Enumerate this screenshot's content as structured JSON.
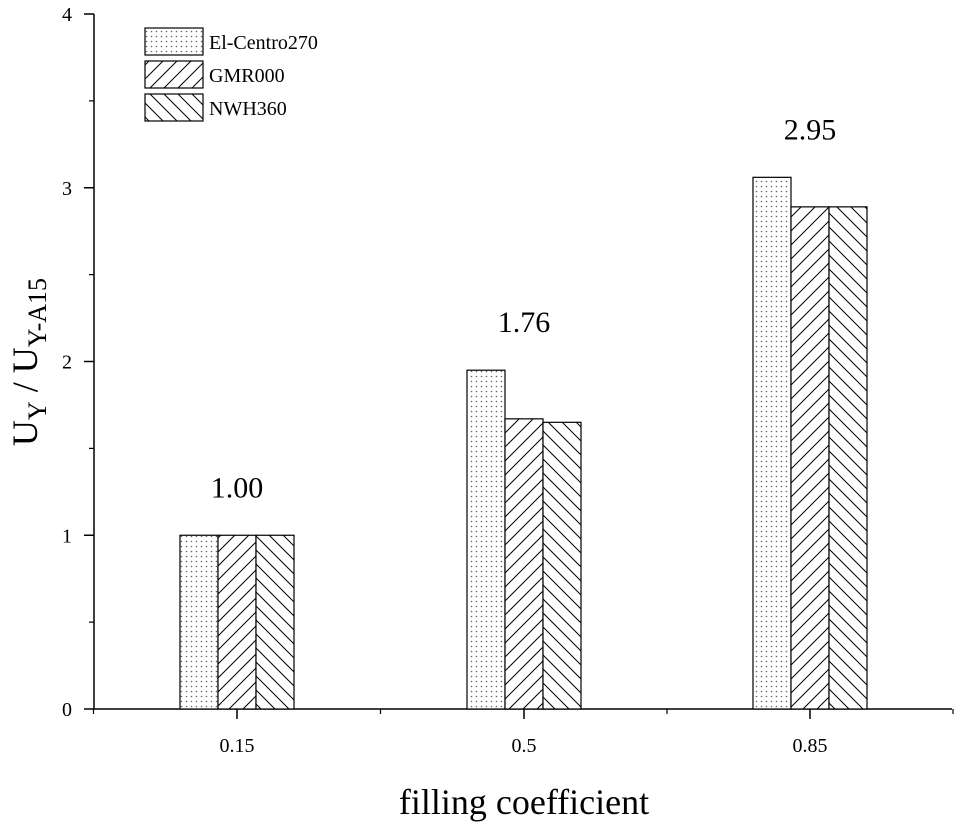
{
  "chart_data": {
    "type": "bar",
    "title": "",
    "xlabel": "filling coefficient",
    "ylabel": {
      "main": "U",
      "sub1": "Y",
      "sep": " / U",
      "sub2": "Y-A15"
    },
    "ylim": [
      0,
      4
    ],
    "yticks": [
      "0",
      "1",
      "2",
      "3",
      "4"
    ],
    "categories": [
      "0.15",
      "0.5",
      "0.85"
    ],
    "series": [
      {
        "name": "El-Centro270",
        "pattern": "dots",
        "values": [
          1.0,
          1.95,
          3.06
        ]
      },
      {
        "name": "GMR000",
        "pattern": "diag-up",
        "values": [
          1.0,
          1.67,
          2.89
        ]
      },
      {
        "name": "NWH360",
        "pattern": "diag-down",
        "values": [
          1.0,
          1.65,
          2.89
        ]
      }
    ],
    "annotations": [
      "1.00",
      "1.76",
      "2.95"
    ],
    "legend_position": "top-left",
    "colors": {
      "bar_fill": "#ffffff",
      "stroke": "#000000",
      "dot": "#777777"
    }
  }
}
